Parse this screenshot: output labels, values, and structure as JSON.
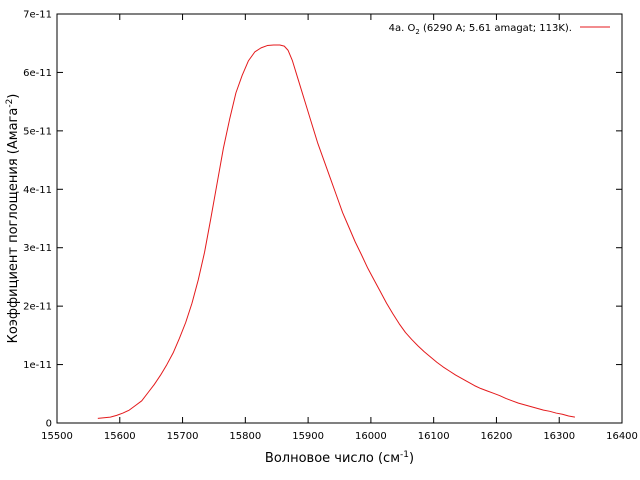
{
  "chart_data": {
    "type": "line",
    "title": "",
    "xlabel": "Волновое число (см-1)",
    "xlabel_main": "Волновое число (см",
    "xlabel_sup": "-1",
    "xlabel_tail": ")",
    "ylabel": "Коэффициент поглощения (Амага-2)",
    "ylabel_main": "Коэффициент поглощения (Амага",
    "ylabel_sup": "-2",
    "ylabel_tail": ")",
    "xlim": [
      15500,
      16400
    ],
    "ylim": [
      0,
      7e-11
    ],
    "x_ticks": [
      15500,
      15600,
      15700,
      15800,
      15900,
      16000,
      16100,
      16200,
      16300,
      16400
    ],
    "x_tick_labels": [
      "15500",
      "15600",
      "15700",
      "15800",
      "15900",
      "16000",
      "16100",
      "16200",
      "16300",
      "16400"
    ],
    "y_ticks": [
      0,
      1e-11,
      2e-11,
      3e-11,
      4e-11,
      5e-11,
      6e-11,
      7e-11
    ],
    "y_tick_labels": [
      "0",
      "1e-11",
      "2e-11",
      "3e-11",
      "4e-11",
      "5e-11",
      "6e-11",
      "7e-11"
    ],
    "grid": false,
    "legend_position": "top-right",
    "series": [
      {
        "name": "4a. O2 (6290 A; 5.61 amagat; 113K).",
        "name_parts": {
          "pre": "4a. O",
          "sub": "2",
          "post": " (6290 A; 5.61 amagat; 113K)."
        },
        "color": "#e41a1c",
        "x": [
          15565,
          15575,
          15585,
          15595,
          15605,
          15615,
          15625,
          15635,
          15645,
          15655,
          15665,
          15675,
          15685,
          15695,
          15705,
          15715,
          15725,
          15735,
          15745,
          15755,
          15765,
          15775,
          15785,
          15795,
          15805,
          15815,
          15825,
          15835,
          15845,
          15855,
          15862,
          15868,
          15875,
          15885,
          15895,
          15905,
          15915,
          15925,
          15935,
          15945,
          15955,
          15965,
          15975,
          15985,
          15995,
          16005,
          16015,
          16025,
          16035,
          16045,
          16055,
          16065,
          16075,
          16085,
          16095,
          16105,
          16115,
          16125,
          16135,
          16145,
          16155,
          16165,
          16175,
          16185,
          16195,
          16205,
          16215,
          16225,
          16235,
          16245,
          16255,
          16265,
          16275,
          16285,
          16295,
          16305,
          16315,
          16325
        ],
        "y": [
          8e-13,
          9e-13,
          1e-12,
          1.3e-12,
          1.7e-12,
          2.2e-12,
          3e-12,
          3.8e-12,
          5.2e-12,
          6.6e-12,
          8.2e-12,
          1e-11,
          1.2e-11,
          1.45e-11,
          1.72e-11,
          2.05e-11,
          2.45e-11,
          2.92e-11,
          3.5e-11,
          4.1e-11,
          4.7e-11,
          5.2e-11,
          5.65e-11,
          5.95e-11,
          6.2e-11,
          6.35e-11,
          6.42e-11,
          6.46e-11,
          6.47e-11,
          6.47e-11,
          6.45e-11,
          6.38e-11,
          6.2e-11,
          5.85e-11,
          5.5e-11,
          5.15e-11,
          4.8e-11,
          4.5e-11,
          4.2e-11,
          3.9e-11,
          3.6e-11,
          3.35e-11,
          3.1e-11,
          2.88e-11,
          2.65e-11,
          2.45e-11,
          2.25e-11,
          2.05e-11,
          1.87e-11,
          1.7e-11,
          1.55e-11,
          1.43e-11,
          1.32e-11,
          1.22e-11,
          1.13e-11,
          1.04e-11,
          9.6e-12,
          8.9e-12,
          8.2e-12,
          7.6e-12,
          7e-12,
          6.4e-12,
          5.9e-12,
          5.5e-12,
          5.1e-12,
          4.7e-12,
          4.2e-12,
          3.8e-12,
          3.4e-12,
          3.1e-12,
          2.8e-12,
          2.5e-12,
          2.2e-12,
          2e-12,
          1.7e-12,
          1.5e-12,
          1.2e-12,
          1e-12
        ]
      }
    ]
  }
}
